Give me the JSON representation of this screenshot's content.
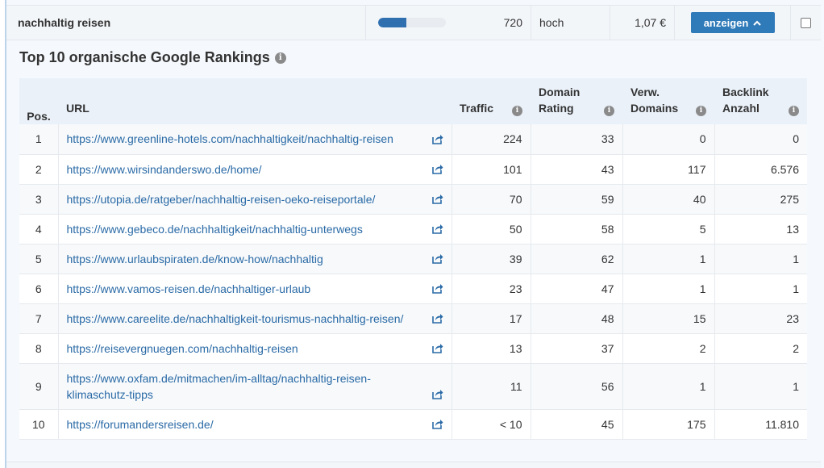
{
  "keyword_row": {
    "keyword": "nachhaltig reisen",
    "search_volume": "720",
    "volume_fill_fraction": 0.42,
    "competition": "hoch",
    "cpc": "1,07 €",
    "toggle_label": "anzeigen"
  },
  "section": {
    "title": "Top 10 organische Google Rankings"
  },
  "table": {
    "headers": {
      "pos": "Pos.",
      "url": "URL",
      "traffic": "Traffic",
      "domain_rating_1": "Domain",
      "domain_rating_2": "Rating",
      "ref_domains_1": "Verw.",
      "ref_domains_2": "Domains",
      "backlinks_1": "Backlink",
      "backlinks_2": "Anzahl"
    },
    "rows": [
      {
        "pos": "1",
        "url": "https://www.greenline-hotels.com/nachhaltigkeit/nachhaltig-reisen",
        "traffic": "224",
        "dr": "33",
        "domains": "0",
        "backlinks": "0"
      },
      {
        "pos": "2",
        "url": "https://www.wirsindanderswo.de/home/",
        "traffic": "101",
        "dr": "43",
        "domains": "117",
        "backlinks": "6.576"
      },
      {
        "pos": "3",
        "url": "https://utopia.de/ratgeber/nachhaltig-reisen-oeko-reiseportale/",
        "traffic": "70",
        "dr": "59",
        "domains": "40",
        "backlinks": "275"
      },
      {
        "pos": "4",
        "url": "https://www.gebeco.de/nachhaltigkeit/nachhaltig-unterwegs",
        "traffic": "50",
        "dr": "58",
        "domains": "5",
        "backlinks": "13"
      },
      {
        "pos": "5",
        "url": "https://www.urlaubspiraten.de/know-how/nachhaltig",
        "traffic": "39",
        "dr": "62",
        "domains": "1",
        "backlinks": "1"
      },
      {
        "pos": "6",
        "url": "https://www.vamos-reisen.de/nachhaltiger-urlaub",
        "traffic": "23",
        "dr": "47",
        "domains": "1",
        "backlinks": "1"
      },
      {
        "pos": "7",
        "url": "https://www.careelite.de/nachhaltigkeit-tourismus-nachhaltig-reisen/",
        "traffic": "17",
        "dr": "48",
        "domains": "15",
        "backlinks": "23"
      },
      {
        "pos": "8",
        "url": "https://reisevergnuegen.com/nachhaltig-reisen",
        "traffic": "13",
        "dr": "37",
        "domains": "2",
        "backlinks": "2"
      },
      {
        "pos": "9",
        "url": "https://www.oxfam.de/mitmachen/im-alltag/nachhaltig-reisen-klimaschutz-tipps",
        "traffic": "11",
        "dr": "56",
        "domains": "1",
        "backlinks": "1"
      },
      {
        "pos": "10",
        "url": "https://forumandersreisen.de/",
        "traffic": "< 10",
        "dr": "45",
        "domains": "175",
        "backlinks": "11.810"
      }
    ]
  },
  "icons": {
    "info": "info-icon",
    "external_link": "external-link-icon",
    "toggle": "chevron-up-icon"
  },
  "colors": {
    "accent": "#2f7ab8",
    "link": "#2a6aa6",
    "header_bg": "#eaf1f9"
  }
}
